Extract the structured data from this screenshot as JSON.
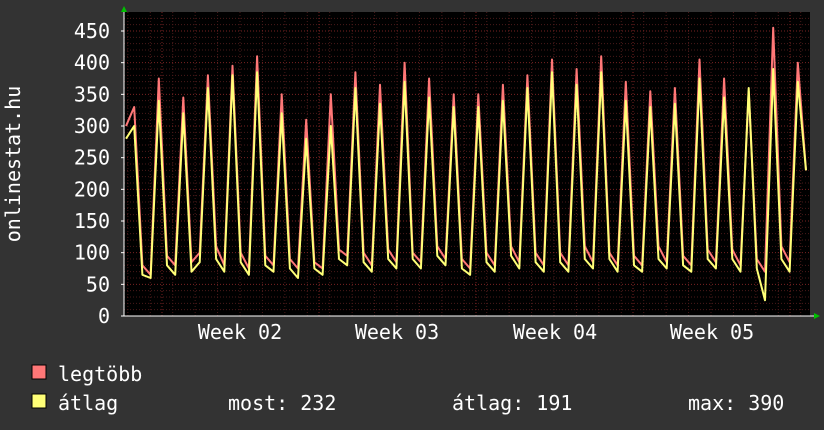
{
  "chart_data": {
    "type": "line",
    "ylabel": "onlinestat.hu",
    "ylim": [
      0,
      480
    ],
    "y_ticks": [
      0,
      50,
      100,
      150,
      200,
      250,
      300,
      350,
      400,
      450
    ],
    "x_tick_labels": [
      "Week 02",
      "Week 03",
      "Week 04",
      "Week 05"
    ],
    "grid": true,
    "legend": "bottom-left",
    "colors": {
      "background": "#333333",
      "plot_area": "#000000",
      "grid_minor": "#4a1a1a",
      "grid_major": "#7a2222",
      "axis": "#ffffff",
      "arrow": "#00c000",
      "legtobb": "#ff7777",
      "atlag": "#ffff77"
    },
    "series": [
      {
        "name": "legtöbb",
        "key": "legtobb",
        "values": [
          300,
          330,
          80,
          65,
          375,
          95,
          80,
          345,
          85,
          100,
          380,
          110,
          80,
          395,
          100,
          75,
          410,
          95,
          80,
          350,
          90,
          75,
          310,
          85,
          75,
          350,
          105,
          95,
          385,
          100,
          80,
          365,
          105,
          85,
          400,
          100,
          85,
          375,
          110,
          90,
          350,
          90,
          75,
          350,
          100,
          80,
          365,
          110,
          85,
          380,
          100,
          80,
          405,
          100,
          80,
          390,
          110,
          85,
          410,
          100,
          80,
          370,
          95,
          80,
          355,
          110,
          85,
          360,
          95,
          80,
          405,
          105,
          85,
          375,
          105,
          80,
          355,
          90,
          70,
          455,
          110,
          85,
          400,
          230
        ]
      },
      {
        "name": "átlag",
        "key": "atlag",
        "values": [
          280,
          300,
          65,
          60,
          340,
          80,
          65,
          320,
          70,
          85,
          360,
          90,
          70,
          380,
          85,
          65,
          385,
          80,
          70,
          320,
          75,
          60,
          280,
          75,
          65,
          300,
          90,
          80,
          360,
          85,
          70,
          335,
          90,
          75,
          370,
          90,
          75,
          345,
          95,
          80,
          330,
          75,
          65,
          330,
          85,
          70,
          340,
          95,
          75,
          360,
          85,
          70,
          385,
          85,
          70,
          365,
          90,
          75,
          385,
          90,
          70,
          340,
          80,
          70,
          330,
          90,
          75,
          335,
          80,
          70,
          375,
          90,
          75,
          345,
          90,
          70,
          360,
          75,
          25,
          390,
          90,
          70,
          370,
          230
        ]
      }
    ],
    "legend_labels": {
      "legtobb": "legtöbb",
      "atlag": "átlag"
    },
    "stats": {
      "most_label": "most:",
      "most_value": "232",
      "atlag_label": "átlag:",
      "atlag_value": "191",
      "max_label": "max:",
      "max_value": "390"
    }
  }
}
